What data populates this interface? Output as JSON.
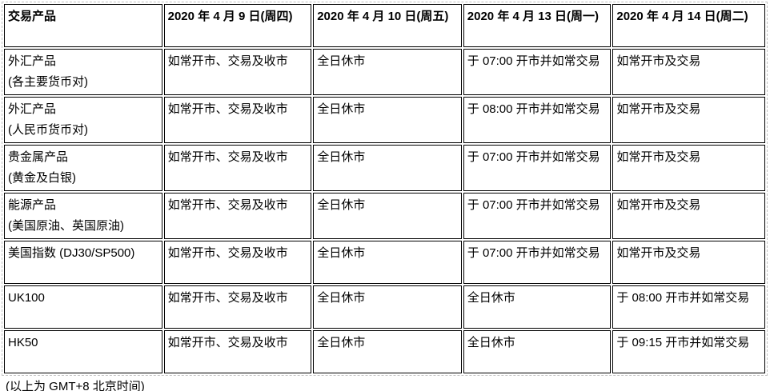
{
  "page": {
    "background_color": "#ffffff",
    "text_color": "#000000",
    "cell_border_color": "#000000",
    "outer_border_color": "#c3c3c3"
  },
  "schedule_table": {
    "headers": [
      "交易产品",
      "2020 年 4 月 9 日(周四)",
      "2020 年 4 月 10 日(周五)",
      "2020 年 4 月 13 日(周一)",
      "2020 年 4 月 14 日(周二)"
    ],
    "rows": [
      [
        "外汇产品\n(各主要货币对)",
        "如常开市、交易及收市",
        "全日休市",
        "于 07:00 开市并如常交易",
        "如常开市及交易"
      ],
      [
        "外汇产品\n(人民币货币对)",
        "如常开市、交易及收市",
        "全日休市",
        "于 08:00 开市并如常交易",
        "如常开市及交易"
      ],
      [
        "贵金属产品\n(黄金及白银)",
        "如常开市、交易及收市",
        "全日休市",
        "于 07:00 开市并如常交易",
        "如常开市及交易"
      ],
      [
        "能源产品\n(美国原油、英国原油)",
        "如常开市、交易及收市",
        "全日休市",
        "于 07:00 开市并如常交易",
        "如常开市及交易"
      ],
      [
        "美国指数 (DJ30/SP500)",
        "如常开市、交易及收市",
        "全日休市",
        "于 07:00 开市并如常交易",
        "如常开市及交易"
      ],
      [
        "UK100",
        "如常开市、交易及收市",
        "全日休市",
        "全日休市",
        "于 08:00 开市并如常交易"
      ],
      [
        "HK50",
        "如常开市、交易及收市",
        "全日休市",
        "全日休市",
        "于 09:15 开市并如常交易"
      ]
    ],
    "footnote": "(以上为 GMT+8 北京时间)"
  }
}
